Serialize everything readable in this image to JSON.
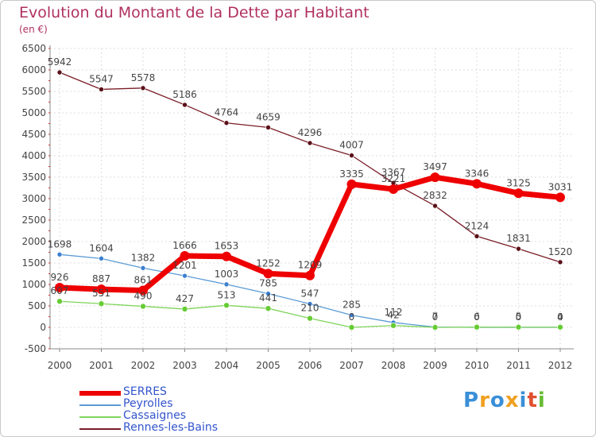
{
  "chart_data": {
    "type": "line",
    "title": "Evolution du Montant de la Dette par Habitant",
    "subtitle": "(en €)",
    "xlabel": "",
    "ylabel": "",
    "ylim": [
      -500,
      6500
    ],
    "yticks": [
      -500,
      0,
      500,
      1000,
      1500,
      2000,
      2500,
      3000,
      3500,
      4000,
      4500,
      5000,
      5500,
      6000,
      6500
    ],
    "categories": [
      "2000",
      "2001",
      "2002",
      "2003",
      "2004",
      "2005",
      "2006",
      "2007",
      "2008",
      "2009",
      "2010",
      "2011",
      "2012"
    ],
    "grid": true,
    "series": [
      {
        "name": "SERRES",
        "color": "#ee0000",
        "values": [
          926,
          887,
          861,
          1666,
          1653,
          1252,
          1209,
          3335,
          3221,
          3497,
          3346,
          3125,
          3031
        ],
        "labels": [
          "926",
          "887",
          "861",
          "1666",
          "1653",
          "1252",
          "1209",
          "3335",
          "3221",
          "3497",
          "3346",
          "3125",
          "3031"
        ]
      },
      {
        "name": "Peyrolles",
        "color": "#5b9bd5",
        "values": [
          1698,
          1604,
          1382,
          1201,
          1003,
          785,
          547,
          285,
          112,
          7,
          0,
          0,
          0
        ],
        "labels": [
          "1698",
          "1604",
          "1382",
          "1201",
          "1003",
          "785",
          "547",
          "285",
          "112",
          "7",
          "0",
          "0",
          "0"
        ]
      },
      {
        "name": "Cassaignes",
        "color": "#7fd45a",
        "values": [
          607,
          551,
          490,
          427,
          513,
          441,
          210,
          0,
          42,
          0,
          6,
          5,
          4
        ],
        "labels": [
          "607",
          "551",
          "490",
          "427",
          "513",
          "441",
          "210",
          "0",
          "42",
          "0",
          "6",
          "5",
          "4"
        ]
      },
      {
        "name": "Rennes-les-Bains",
        "color": "#7a1e28",
        "values": [
          5942,
          5547,
          5578,
          5186,
          4764,
          4659,
          4296,
          4007,
          3367,
          2832,
          2124,
          1831,
          1520
        ],
        "labels": [
          "5942",
          "5547",
          "5578",
          "5186",
          "4764",
          "4659",
          "4296",
          "4007",
          "3367",
          "2832",
          "2124",
          "1831",
          "1520"
        ]
      }
    ],
    "legend_position": "bottom-left"
  },
  "logo": {
    "text": "Proxiti"
  }
}
